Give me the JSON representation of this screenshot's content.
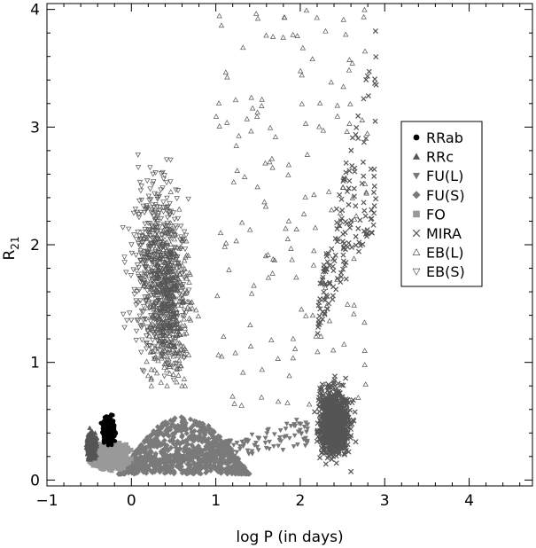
{
  "chart_data": {
    "type": "scatter",
    "title": "",
    "xlabel": "log P (in days)",
    "ylabel": "R",
    "ylabel_subscript": "21",
    "xlim": [
      -1,
      4.75
    ],
    "ylim": [
      -0.05,
      4.05
    ],
    "x_ticks": [
      {
        "value": -1,
        "label": "−1"
      },
      {
        "value": 0,
        "label": "0"
      },
      {
        "value": 1,
        "label": "1"
      },
      {
        "value": 2,
        "label": "2"
      },
      {
        "value": 3,
        "label": "3"
      },
      {
        "value": 4,
        "label": "4"
      }
    ],
    "y_ticks": [
      {
        "value": 0,
        "label": "0"
      },
      {
        "value": 1,
        "label": "1"
      },
      {
        "value": 2,
        "label": "2"
      },
      {
        "value": 3,
        "label": "3"
      },
      {
        "value": 4,
        "label": "4"
      }
    ],
    "grid": false,
    "legend_position": "right",
    "series": [
      {
        "name": "RRab",
        "marker": "circle",
        "color": "#000000",
        "regions": [
          {
            "x": [
              -0.42,
              -0.12
            ],
            "y": [
              0.2,
              0.65
            ],
            "density": "dense",
            "core": [
              -0.27,
              0.42
            ]
          }
        ]
      },
      {
        "name": "RRc",
        "marker": "triangle-up",
        "color": "#555555",
        "regions": [
          {
            "x": [
              -0.6,
              -0.35
            ],
            "y": [
              0.05,
              0.55
            ],
            "density": "medium",
            "core": [
              -0.47,
              0.3
            ]
          }
        ]
      },
      {
        "name": "FU(L)",
        "marker": "triangle-down",
        "color": "#777777",
        "regions": [
          {
            "x": [
              0.5,
              2.1
            ],
            "y": [
              0.1,
              0.55
            ],
            "density": "sparse",
            "trend": "rising"
          }
        ]
      },
      {
        "name": "FU(S)",
        "marker": "diamond",
        "color": "#7a7a7a",
        "regions": [
          {
            "x": [
              -0.15,
              1.4
            ],
            "y": [
              0.05,
              0.55
            ],
            "density": "dense",
            "shape": "arc"
          }
        ]
      },
      {
        "name": "FO",
        "marker": "square",
        "color": "#999999",
        "regions": [
          {
            "x": [
              -0.6,
              0.3
            ],
            "y": [
              0.05,
              0.5
            ],
            "density": "dense",
            "core": [
              -0.25,
              0.2
            ]
          }
        ]
      },
      {
        "name": "MIRA",
        "marker": "x",
        "color": "#555555",
        "regions": [
          {
            "x": [
              2.0,
              2.85
            ],
            "y": [
              0.0,
              1.4
            ],
            "density": "dense",
            "core": [
              2.4,
              0.5
            ]
          },
          {
            "x": [
              2.2,
              2.9
            ],
            "y": [
              1.0,
              3.9
            ],
            "density": "sparse",
            "trend": "rising"
          }
        ]
      },
      {
        "name": "EB(L)",
        "marker": "triangle-up-open",
        "color": "#555555",
        "regions": [
          {
            "x": [
              0.0,
              1.2
            ],
            "y": [
              0.8,
              4.0
            ],
            "density": "medium",
            "core": [
              0.45,
              1.5
            ]
          },
          {
            "x": [
              1.0,
              2.8
            ],
            "y": [
              0.6,
              4.0
            ],
            "density": "sparse"
          }
        ]
      },
      {
        "name": "EB(S)",
        "marker": "triangle-down-open",
        "color": "#555555",
        "regions": [
          {
            "x": [
              -0.4,
              1.1
            ],
            "y": [
              0.3,
              4.0
            ],
            "density": "medium",
            "core": [
              0.3,
              1.8
            ]
          }
        ]
      }
    ]
  }
}
